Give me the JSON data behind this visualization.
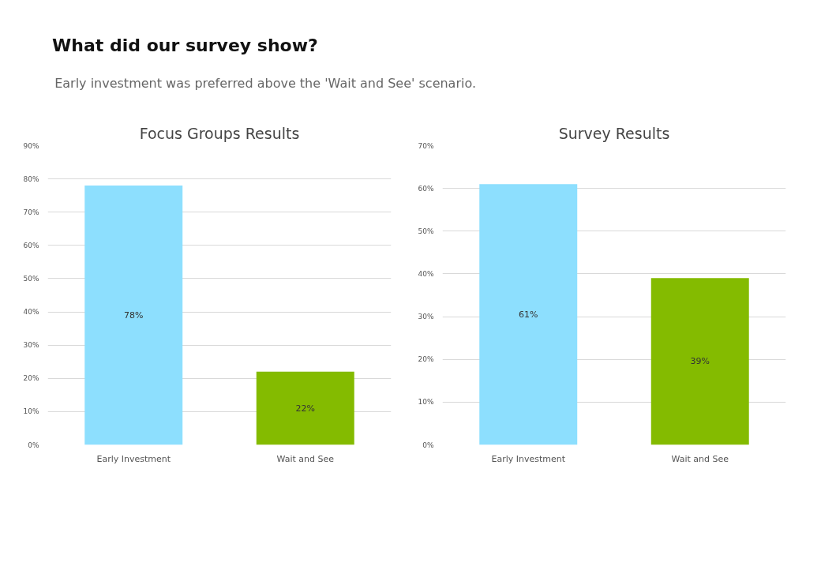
{
  "chart_data": [
    {
      "type": "other",
      "title": "What did our survey show?",
      "subtitle": "Early investment was preferred above the 'Wait and See' scenario."
    },
    {
      "type": "bar",
      "title": "Focus Groups Results",
      "categories": [
        "Early Investment",
        "Wait and See"
      ],
      "values": [
        78,
        22
      ],
      "colors": [
        "#8ddffe",
        "#84bb00"
      ],
      "value_labels": [
        "78%",
        "22%"
      ],
      "ylim": [
        0,
        90
      ],
      "yticks": [
        {
          "value": 0,
          "label": "0%"
        },
        {
          "value": 10,
          "label": "10%"
        },
        {
          "value": 20,
          "label": "20%"
        },
        {
          "value": 30,
          "label": "30%"
        },
        {
          "value": 40,
          "label": "40%"
        },
        {
          "value": 50,
          "label": "50%"
        },
        {
          "value": 60,
          "label": "60%"
        },
        {
          "value": 70,
          "label": "70%"
        },
        {
          "value": 80,
          "label": "80%"
        },
        {
          "value": 90,
          "label": "90%"
        }
      ],
      "grid": "y"
    },
    {
      "type": "bar",
      "title": "Survey Results",
      "categories": [
        "Early Investment",
        "Wait and See"
      ],
      "values": [
        61,
        39
      ],
      "colors": [
        "#8ddffe",
        "#84bb00"
      ],
      "value_labels": [
        "61%",
        "39%"
      ],
      "ylim": [
        0,
        70
      ],
      "yticks": [
        {
          "value": 0,
          "label": "0%"
        },
        {
          "value": 10,
          "label": "10%"
        },
        {
          "value": 20,
          "label": "20%"
        },
        {
          "value": 30,
          "label": "30%"
        },
        {
          "value": 40,
          "label": "40%"
        },
        {
          "value": 50,
          "label": "50%"
        },
        {
          "value": 60,
          "label": "60%"
        },
        {
          "value": 70,
          "label": "70%"
        }
      ],
      "grid": "y"
    }
  ]
}
